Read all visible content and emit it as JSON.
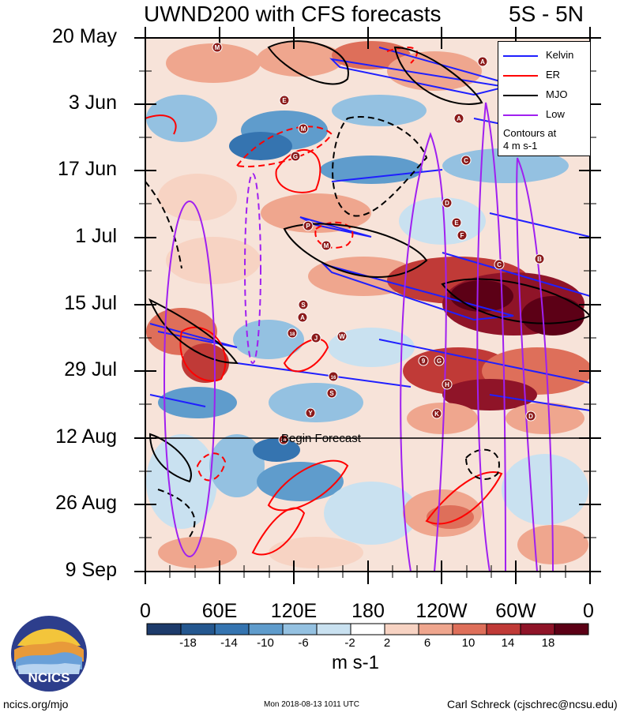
{
  "title": "UWND200 with CFS forecasts",
  "region": "5S - 5N",
  "legend": {
    "items": [
      {
        "label": "Kelvin",
        "color": "#1f1fff"
      },
      {
        "label": "ER",
        "color": "#ff0000"
      },
      {
        "label": "MJO",
        "color": "#000000"
      },
      {
        "label": "Low",
        "color": "#a020f0"
      }
    ],
    "note_line1": "Contours at",
    "note_line2": "4 m s-1"
  },
  "forecast_label": "Begin Forecast",
  "colorbar": {
    "unit": "m s-1",
    "ticks": [
      "-18",
      "-14",
      "-10",
      "-6",
      "-2",
      "2",
      "6",
      "10",
      "14",
      "18"
    ],
    "colors": [
      "#1d3b6b",
      "#24578f",
      "#3574b0",
      "#5f9ccc",
      "#94c1e1",
      "#c9e1f0",
      "#ffffff",
      "#f7d3c3",
      "#efa68e",
      "#de6f5a",
      "#c03a37",
      "#8f1428",
      "#5c0016"
    ]
  },
  "footer": {
    "left": "ncics.org/mjo",
    "middle": "Mon 2018-08-13 1011 UTC",
    "right": "Carl Schreck (cjschrec@ncsu.edu)",
    "logo_text": "NCICS"
  },
  "chart_data": {
    "type": "heatmap",
    "title": "UWND200 with CFS forecasts",
    "subtitle": "5S - 5N",
    "x_tick_labels": [
      "0",
      "60E",
      "120E",
      "180",
      "120W",
      "60W",
      "0"
    ],
    "y_tick_labels": [
      "20 May",
      "3 Jun",
      "17 Jun",
      "1 Jul",
      "15 Jul",
      "29 Jul",
      "12 Aug",
      "26 Aug",
      "9 Sep"
    ],
    "x_range": [
      "0",
      "0"
    ],
    "y_range": [
      "2018-05-20",
      "2018-09-09"
    ],
    "forecast_start": "2018-08-12",
    "colorbar_unit": "m s-1",
    "colorbar_levels": [
      -18,
      -14,
      -10,
      -6,
      -2,
      2,
      6,
      10,
      14,
      18
    ],
    "contour_series": [
      "Kelvin",
      "ER",
      "MJO",
      "Low"
    ],
    "contour_interval": "4 m s-1",
    "storm_markers": [
      "M",
      "A",
      "E",
      "M",
      "A",
      "G",
      "C",
      "D",
      "E",
      "F",
      "P",
      "M",
      "C",
      "B",
      "S",
      "A",
      "18",
      "J",
      "W",
      "9",
      "G",
      "H",
      "16",
      "S",
      "K",
      "Y",
      "20",
      "D"
    ]
  }
}
